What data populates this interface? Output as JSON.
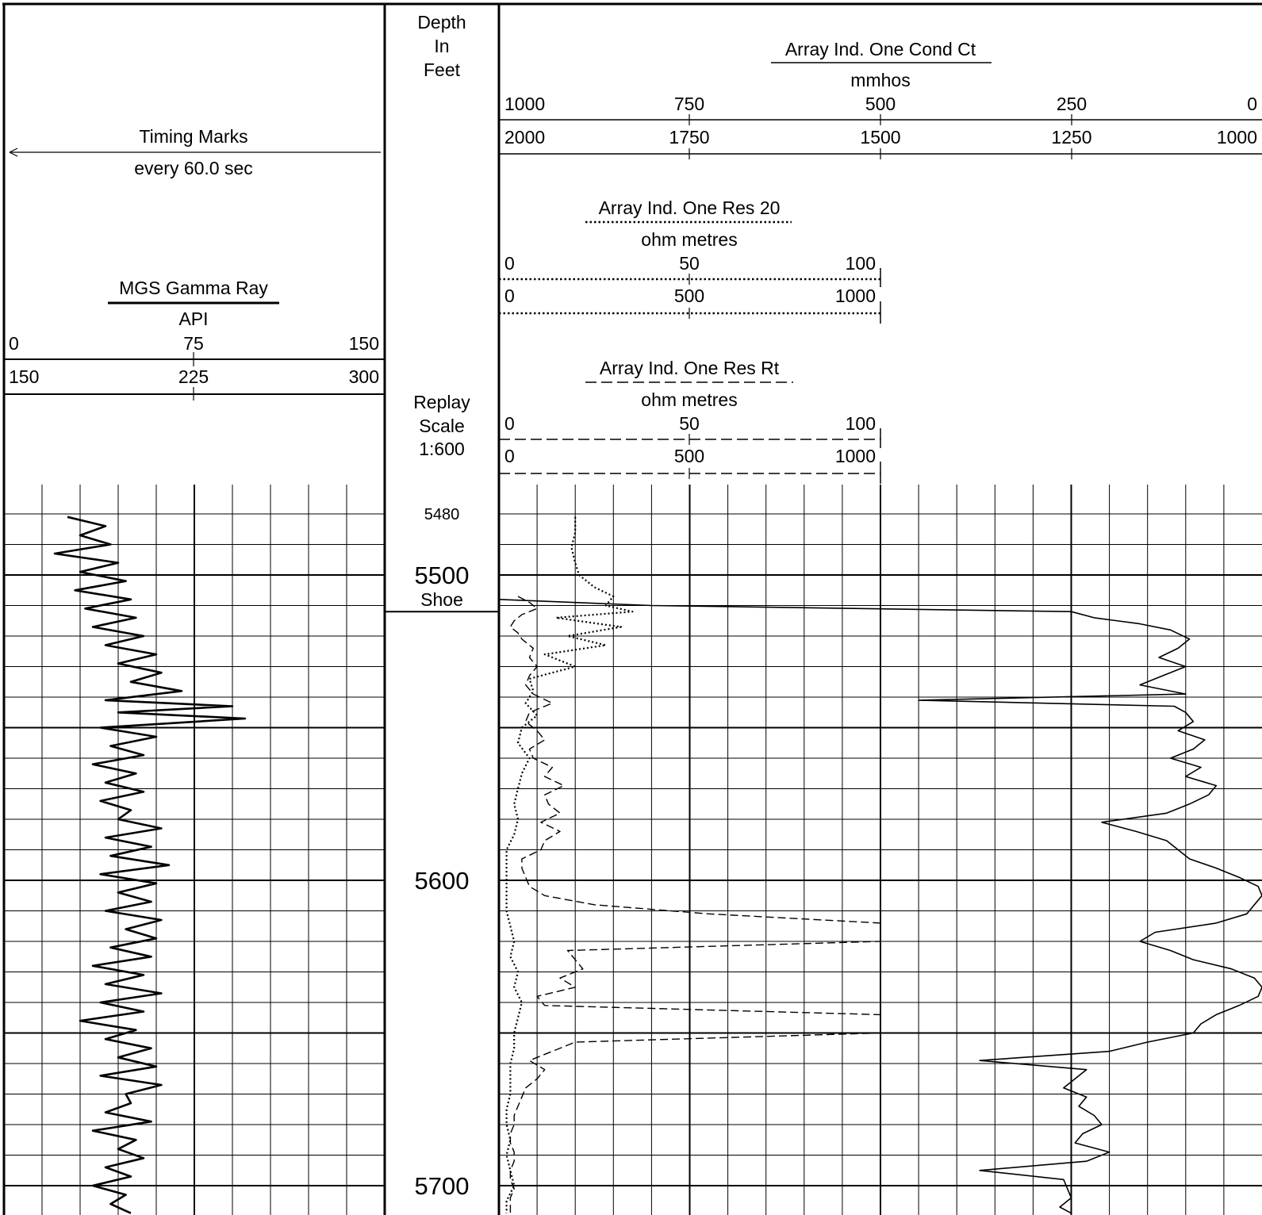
{
  "track1": {
    "timing_label": "Timing Marks",
    "timing_interval": "every 60.0 sec",
    "gamma_title": "MGS Gamma Ray",
    "gamma_unit": "API",
    "scale_row1": [
      "0",
      "75",
      "150"
    ],
    "scale_row2": [
      "150",
      "225",
      "300"
    ]
  },
  "depth_track": {
    "header": [
      "Depth",
      "In",
      "Feet"
    ],
    "replay": [
      "Replay",
      "Scale",
      "1:600"
    ],
    "shoe_label": "Shoe",
    "depth_labels": [
      {
        "depth": 5480,
        "text": "5480"
      },
      {
        "depth": 5500,
        "text": "5500"
      },
      {
        "depth": 5600,
        "text": "5600"
      },
      {
        "depth": 5700,
        "text": "5700"
      }
    ]
  },
  "track2": {
    "cond_title": "Array Ind. One Cond Ct",
    "cond_unit": "mmhos",
    "cond_scale_row1": [
      "1000",
      "750",
      "500",
      "250",
      "0"
    ],
    "cond_scale_row2": [
      "2000",
      "1750",
      "1500",
      "1250",
      "1000"
    ],
    "res20_title": "Array Ind. One Res 20",
    "res20_unit": "ohm metres",
    "res20_scale_row1": [
      "0",
      "50",
      "100"
    ],
    "res20_scale_row2": [
      "0",
      "500",
      "1000"
    ],
    "rt_title": "Array Ind. One Res Rt",
    "rt_unit": "ohm metres",
    "rt_scale_row1": [
      "0",
      "50",
      "100"
    ],
    "rt_scale_row2": [
      "0",
      "500",
      "1000"
    ]
  },
  "chart_data": {
    "type": "line",
    "depth_range": [
      5470,
      5710
    ],
    "depth_unit": "ft",
    "shoe_depth": 5512,
    "series": [
      {
        "name": "MGS Gamma Ray",
        "unit": "API",
        "scale": [
          0,
          150
        ],
        "style": "solid-bold",
        "depth": [
          5481,
          5484,
          5487,
          5490,
          5493,
          5496,
          5499,
          5502,
          5505,
          5508,
          5511,
          5514,
          5517,
          5520,
          5523,
          5526,
          5529,
          5532,
          5535,
          5538,
          5541,
          5543,
          5545,
          5547,
          5550,
          5553,
          5556,
          5559,
          5562,
          5565,
          5568,
          5571,
          5574,
          5577,
          5580,
          5583,
          5586,
          5589,
          5592,
          5595,
          5598,
          5601,
          5604,
          5607,
          5610,
          5613,
          5616,
          5619,
          5622,
          5625,
          5628,
          5631,
          5634,
          5637,
          5640,
          5643,
          5646,
          5649,
          5652,
          5655,
          5658,
          5661,
          5664,
          5667,
          5670,
          5673,
          5676,
          5679,
          5682,
          5685,
          5688,
          5691,
          5694,
          5697,
          5700,
          5703,
          5706,
          5709
        ],
        "values": [
          25,
          40,
          30,
          42,
          20,
          45,
          30,
          48,
          28,
          50,
          32,
          52,
          35,
          55,
          40,
          60,
          45,
          62,
          50,
          70,
          40,
          90,
          45,
          95,
          38,
          60,
          42,
          55,
          35,
          52,
          40,
          55,
          38,
          50,
          45,
          62,
          40,
          58,
          42,
          65,
          38,
          60,
          45,
          58,
          40,
          62,
          48,
          60,
          42,
          58,
          35,
          55,
          40,
          62,
          38,
          55,
          30,
          52,
          40,
          58,
          45,
          60,
          38,
          62,
          48,
          50,
          40,
          58,
          35,
          52,
          45,
          55,
          40,
          50,
          35,
          48,
          42,
          50
        ]
      },
      {
        "name": "Array Ind. One Cond Ct",
        "unit": "mmhos",
        "scale": [
          1000,
          0
        ],
        "style": "solid",
        "depth": [
          5508,
          5510,
          5512,
          5514,
          5516,
          5518,
          5521,
          5524,
          5527,
          5530,
          5533,
          5536,
          5539,
          5541,
          5543,
          5545,
          5548,
          5551,
          5554,
          5557,
          5560,
          5563,
          5566,
          5569,
          5572,
          5575,
          5578,
          5581,
          5584,
          5587,
          5590,
          5593,
          5596,
          5599,
          5602,
          5605,
          5608,
          5611,
          5614,
          5617,
          5620,
          5623,
          5626,
          5629,
          5632,
          5635,
          5638,
          5641,
          5644,
          5647,
          5650,
          5653,
          5656,
          5659,
          5662,
          5665,
          5668,
          5671,
          5674,
          5677,
          5680,
          5683,
          5686,
          5689,
          5692,
          5695,
          5698,
          5701,
          5704,
          5707,
          5709
        ],
        "values": [
          1000,
          800,
          250,
          220,
          160,
          120,
          95,
          110,
          135,
          100,
          130,
          160,
          100,
          450,
          115,
          100,
          90,
          110,
          75,
          90,
          120,
          80,
          100,
          60,
          70,
          95,
          125,
          210,
          165,
          125,
          110,
          95,
          60,
          30,
          5,
          0,
          10,
          20,
          60,
          140,
          160,
          120,
          90,
          40,
          10,
          0,
          5,
          30,
          60,
          80,
          90,
          150,
          200,
          370,
          230,
          245,
          260,
          230,
          240,
          220,
          210,
          235,
          245,
          200,
          230,
          370,
          260,
          255,
          250,
          265,
          250
        ]
      },
      {
        "name": "Array Ind. One Res 20",
        "unit": "ohm metres",
        "scale": [
          0,
          100
        ],
        "style": "dotted",
        "depth": [
          5481,
          5486,
          5491,
          5496,
          5500,
          5504,
          5507,
          5510,
          5512,
          5514,
          5517,
          5520,
          5523,
          5526,
          5530,
          5534,
          5538,
          5542,
          5546,
          5550,
          5555,
          5560,
          5565,
          5570,
          5575,
          5580,
          5585,
          5590,
          5595,
          5600,
          5605,
          5610,
          5615,
          5620,
          5625,
          5630,
          5635,
          5640,
          5645,
          5650,
          5655,
          5660,
          5665,
          5670,
          5675,
          5680,
          5685,
          5690,
          5695,
          5700,
          5705,
          5709
        ],
        "values": [
          20,
          20,
          19,
          20,
          21,
          25,
          30,
          28,
          35,
          15,
          32,
          18,
          28,
          12,
          20,
          8,
          9,
          7,
          10,
          6,
          5,
          8,
          6,
          5,
          4,
          5,
          4,
          2,
          2,
          2,
          2,
          2,
          3,
          4,
          3,
          5,
          4,
          6,
          5,
          4,
          4,
          3,
          3,
          3,
          2,
          2,
          3,
          2,
          3,
          4,
          2,
          2
        ]
      },
      {
        "name": "Array Ind. One Res Rt",
        "unit": "ohm metres",
        "scale": [
          0,
          100
        ],
        "style": "dashed",
        "depth": [
          5507,
          5509,
          5511,
          5513,
          5515,
          5517,
          5519,
          5521,
          5524,
          5527,
          5530,
          5533,
          5536,
          5539,
          5542,
          5545,
          5548,
          5551,
          5554,
          5557,
          5560,
          5563,
          5566,
          5569,
          5572,
          5575,
          5578,
          5581,
          5584,
          5587,
          5590,
          5593,
          5596,
          5599,
          5602,
          5605,
          5608,
          5611,
          5614,
          5617,
          5620,
          5623,
          5626,
          5629,
          5632,
          5635,
          5638,
          5641,
          5644,
          5647,
          5650,
          5653,
          5656,
          5659,
          5662,
          5665,
          5668,
          5671,
          5674,
          5677,
          5680,
          5683,
          5686,
          5689,
          5692,
          5695,
          5698,
          5701,
          5704,
          5707,
          5709
        ],
        "values": [
          5,
          8,
          10,
          6,
          4,
          3,
          5,
          6,
          9,
          8,
          10,
          8,
          7,
          9,
          14,
          8,
          7,
          10,
          12,
          8,
          9,
          14,
          12,
          17,
          12,
          13,
          16,
          11,
          16,
          12,
          11,
          6,
          6,
          7,
          8,
          12,
          25,
          55,
          100,
          100,
          100,
          18,
          20,
          22,
          16,
          20,
          10,
          12,
          100,
          100,
          100,
          20,
          14,
          8,
          12,
          10,
          7,
          6,
          5,
          4,
          4,
          3,
          3,
          4,
          4,
          3,
          3,
          4,
          3,
          3,
          3
        ]
      }
    ]
  }
}
